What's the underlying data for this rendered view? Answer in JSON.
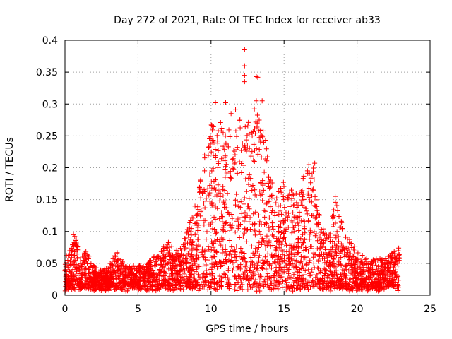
{
  "chart_data": {
    "type": "scatter",
    "title": "Day 272 of 2021, Rate Of TEC Index for receiver ab33",
    "xlabel": "GPS time / hours",
    "ylabel": "ROTI / TECUs",
    "xlim": [
      0,
      25
    ],
    "ylim": [
      0,
      0.4
    ],
    "grid": true,
    "x_ticks": [
      0,
      5,
      10,
      15,
      20,
      25
    ],
    "x_tick_labels": [
      "0",
      "5",
      "10",
      "15",
      "20",
      "25"
    ],
    "y_ticks": [
      0,
      0.05,
      0.1,
      0.15,
      0.2,
      0.25,
      0.3,
      0.35,
      0.4
    ],
    "y_tick_labels": [
      "0",
      "0.05",
      "0.1",
      "0.15",
      "0.2",
      "0.25",
      "0.3",
      "0.35",
      "0.4"
    ],
    "marker": "+",
    "series": [
      {
        "name": "ROTI",
        "color": "#ff0000",
        "envelope_note": "approximate upper envelope of dense point cloud (hours, TECU)",
        "envelope": [
          [
            0.0,
            0.06
          ],
          [
            0.5,
            0.08
          ],
          [
            0.6,
            0.11
          ],
          [
            1.0,
            0.06
          ],
          [
            1.5,
            0.07
          ],
          [
            2.0,
            0.045
          ],
          [
            2.5,
            0.04
          ],
          [
            3.0,
            0.045
          ],
          [
            3.5,
            0.07
          ],
          [
            4.0,
            0.05
          ],
          [
            4.5,
            0.045
          ],
          [
            5.0,
            0.05
          ],
          [
            5.5,
            0.045
          ],
          [
            6.0,
            0.06
          ],
          [
            6.5,
            0.065
          ],
          [
            7.0,
            0.09
          ],
          [
            7.5,
            0.07
          ],
          [
            8.0,
            0.08
          ],
          [
            8.5,
            0.11
          ],
          [
            9.0,
            0.15
          ],
          [
            9.5,
            0.22
          ],
          [
            10.0,
            0.27
          ],
          [
            10.5,
            0.3
          ],
          [
            11.0,
            0.25
          ],
          [
            11.5,
            0.3
          ],
          [
            12.0,
            0.28
          ],
          [
            12.5,
            0.27
          ],
          [
            13.0,
            0.3
          ],
          [
            13.5,
            0.28
          ],
          [
            14.0,
            0.2
          ],
          [
            14.5,
            0.16
          ],
          [
            15.0,
            0.18
          ],
          [
            15.5,
            0.17
          ],
          [
            16.0,
            0.16
          ],
          [
            16.5,
            0.2
          ],
          [
            17.0,
            0.2
          ],
          [
            17.5,
            0.12
          ],
          [
            18.0,
            0.09
          ],
          [
            18.5,
            0.15
          ],
          [
            19.0,
            0.11
          ],
          [
            19.5,
            0.09
          ],
          [
            20.0,
            0.07
          ],
          [
            20.5,
            0.06
          ],
          [
            21.0,
            0.055
          ],
          [
            21.5,
            0.06
          ],
          [
            22.0,
            0.06
          ],
          [
            22.5,
            0.07
          ],
          [
            22.9,
            0.075
          ]
        ],
        "outliers": [
          [
            12.3,
            0.385
          ],
          [
            12.3,
            0.36
          ],
          [
            12.3,
            0.345
          ],
          [
            12.3,
            0.335
          ],
          [
            13.1,
            0.343
          ],
          [
            13.2,
            0.342
          ],
          [
            10.3,
            0.302
          ],
          [
            11.0,
            0.302
          ],
          [
            13.1,
            0.305
          ],
          [
            13.5,
            0.305
          ],
          [
            16.7,
            0.205
          ],
          [
            17.1,
            0.207
          ],
          [
            18.5,
            0.155
          ]
        ]
      }
    ]
  }
}
